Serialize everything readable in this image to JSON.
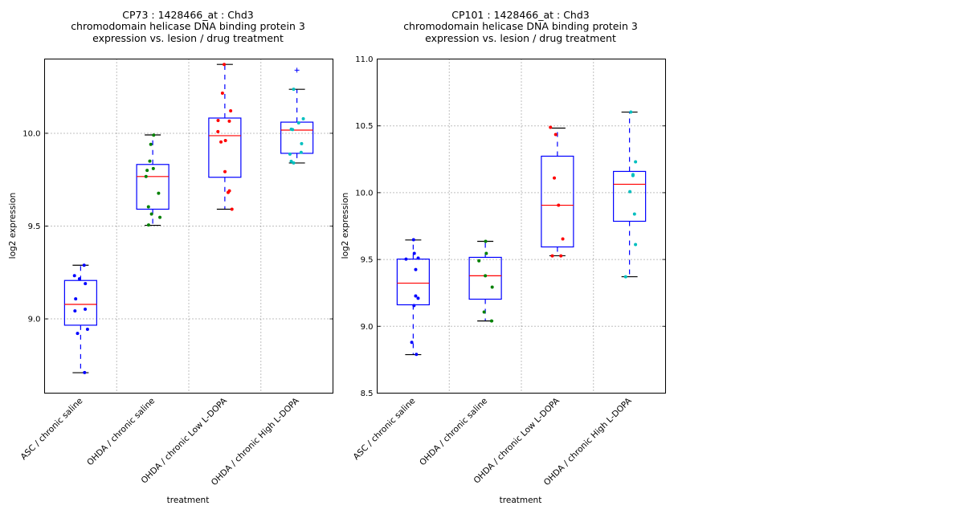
{
  "chart_data": [
    {
      "type": "box",
      "title_lines": [
        "CP73 : 1428466_at : Chd3",
        "chromodomain helicase DNA binding protein 3",
        "expression vs. lesion / drug treatment"
      ],
      "xlabel": "treatment",
      "ylabel": "log2 expression",
      "ylim": [
        8.6,
        10.4
      ],
      "yticks": [
        9.0,
        9.5,
        10.0
      ],
      "ytick_labels": [
        "9.0",
        "9.5",
        "10.0"
      ],
      "grid": true,
      "categories": [
        "ASC / chronic saline",
        "OHDA / chronic saline",
        "OHDA / chronic Low L-DOPA",
        "OHDA / chronic High L-DOPA"
      ],
      "point_colors": [
        "#0000ff",
        "#008000",
        "#ff0000",
        "#00bfbf"
      ],
      "boxes": [
        {
          "whisker_low": 8.71,
          "q1": 8.966,
          "median": 9.078,
          "q3": 9.207,
          "whisker_high": 9.289,
          "outliers": [],
          "points": [
            9.289,
            9.233,
            9.216,
            9.19,
            9.108,
            9.052,
            9.043,
            8.944,
            8.922,
            8.711
          ]
        },
        {
          "whisker_low": 9.504,
          "q1": 9.591,
          "median": 9.767,
          "q3": 9.832,
          "whisker_high": 9.991,
          "outliers": [],
          "points": [
            9.99,
            9.94,
            9.85,
            9.81,
            9.8,
            9.767,
            9.677,
            9.604,
            9.565,
            9.547,
            9.506
          ]
        },
        {
          "whisker_low": 9.591,
          "q1": 9.763,
          "median": 9.987,
          "q3": 10.082,
          "whisker_high": 10.371,
          "outliers": [],
          "points": [
            10.371,
            10.216,
            10.121,
            10.069,
            10.065,
            10.009,
            9.961,
            9.953,
            9.793,
            9.69,
            9.681,
            9.591
          ]
        },
        {
          "whisker_low": 9.84,
          "q1": 9.892,
          "median": 10.017,
          "q3": 10.06,
          "whisker_high": 10.237,
          "outliers": [
            10.34
          ],
          "points": [
            10.237,
            10.078,
            10.056,
            10.022,
            10.02,
            9.944,
            9.897,
            9.888,
            9.849,
            9.84
          ]
        }
      ]
    },
    {
      "type": "box",
      "title_lines": [
        "CP101 : 1428466_at : Chd3",
        "chromodomain helicase DNA binding protein 3",
        "expression vs. lesion / drug treatment"
      ],
      "xlabel": "treatment",
      "ylabel": "log2 expression",
      "ylim": [
        8.5,
        11.0
      ],
      "yticks": [
        8.5,
        9.0,
        9.5,
        10.0,
        10.5,
        11.0
      ],
      "ytick_labels": [
        "8.5",
        "9.0",
        "9.5",
        "10.0",
        "10.5",
        "11.0"
      ],
      "grid": true,
      "categories": [
        "ASC / chronic saline",
        "OHDA / chronic saline",
        "OHDA / chronic Low L-DOPA",
        "OHDA / chronic High L-DOPA"
      ],
      "point_colors": [
        "#0000ff",
        "#008000",
        "#ff0000",
        "#00bfbf"
      ],
      "boxes": [
        {
          "whisker_low": 8.788,
          "q1": 9.161,
          "median": 9.323,
          "q3": 9.503,
          "whisker_high": 9.646,
          "outliers": [],
          "points": [
            9.648,
            9.546,
            9.51,
            9.503,
            9.425,
            9.227,
            9.21,
            9.155,
            8.88,
            8.79
          ]
        },
        {
          "whisker_low": 9.04,
          "q1": 9.203,
          "median": 9.378,
          "q3": 9.516,
          "whisker_high": 9.636,
          "outliers": [],
          "points": [
            9.636,
            9.546,
            9.49,
            9.378,
            9.293,
            9.107,
            9.04
          ]
        },
        {
          "whisker_low": 9.528,
          "q1": 9.594,
          "median": 9.906,
          "q3": 10.273,
          "whisker_high": 10.483,
          "outliers": [],
          "points": [
            10.489,
            10.435,
            10.11,
            9.906,
            9.654,
            9.527,
            9.527
          ]
        },
        {
          "whisker_low": 9.371,
          "q1": 9.786,
          "median": 10.063,
          "q3": 10.159,
          "whisker_high": 10.603,
          "outliers": [],
          "points": [
            10.603,
            10.231,
            10.135,
            10.128,
            10.008,
            9.84,
            9.612,
            9.371
          ]
        }
      ]
    }
  ]
}
